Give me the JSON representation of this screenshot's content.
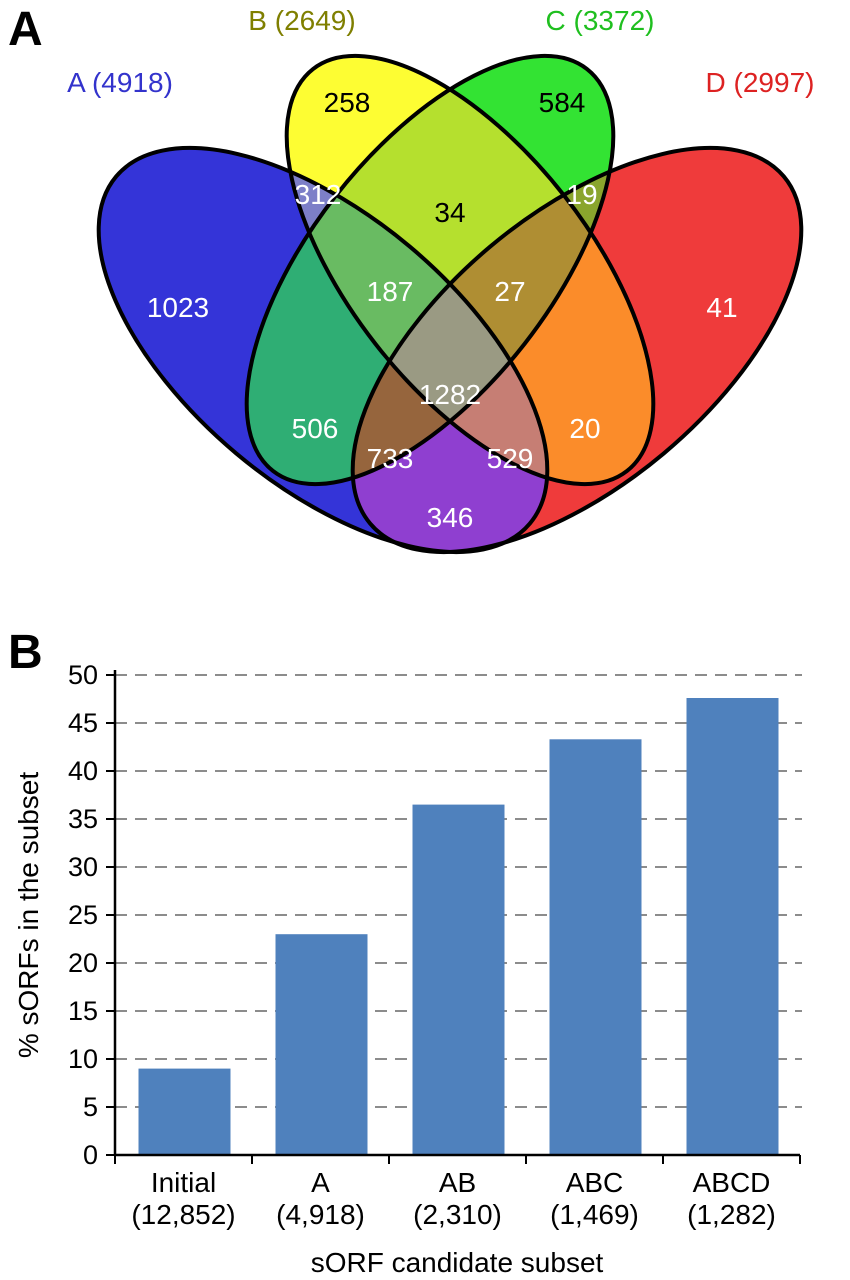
{
  "figure": {
    "panels": [
      {
        "label": "A"
      },
      {
        "label": "B"
      }
    ]
  },
  "chart_data": [
    {
      "type": "venn",
      "panel": "A",
      "sets": [
        {
          "name": "A",
          "label": "A (4918)",
          "total": 4918,
          "color": "#3434d8",
          "label_color": "#3333cc"
        },
        {
          "name": "B",
          "label": "B (2649)",
          "total": 2649,
          "color": "#fdfd33",
          "label_color": "#7f7f00"
        },
        {
          "name": "C",
          "label": "C (3372)",
          "total": 3372,
          "color": "#33e333",
          "label_color": "#1fbf1f"
        },
        {
          "name": "D",
          "label": "D (2997)",
          "total": 2997,
          "color": "#ef3b3b",
          "label_color": "#dd2222"
        }
      ],
      "regions": {
        "A": 1023,
        "B": 258,
        "C": 584,
        "D": 41,
        "AB": 312,
        "AC": 506,
        "AD": 346,
        "BC": 34,
        "BD": 20,
        "CD": 19,
        "ABC": 187,
        "ABD": 529,
        "ACD": 733,
        "BCD": 27,
        "ABCD": 1282
      }
    },
    {
      "type": "bar",
      "panel": "B",
      "categories": [
        {
          "line1": "Initial",
          "line2": "(12,852)"
        },
        {
          "line1": "A",
          "line2": "(4,918)"
        },
        {
          "line1": "AB",
          "line2": "(2,310)"
        },
        {
          "line1": "ABC",
          "line2": "(1,469)"
        },
        {
          "line1": "ABCD",
          "line2": "(1,282)"
        }
      ],
      "values": [
        9,
        23,
        36.5,
        43.3,
        47.6
      ],
      "yticks": [
        0,
        5,
        10,
        15,
        20,
        25,
        30,
        35,
        40,
        45,
        50
      ],
      "ylim": [
        0,
        50
      ],
      "ytick_step": 5,
      "xlabel": "sORF candidate subset",
      "ylabel": "% sORFs in the subset",
      "bar_color": "#4f81bd",
      "grid": "dashed"
    }
  ]
}
